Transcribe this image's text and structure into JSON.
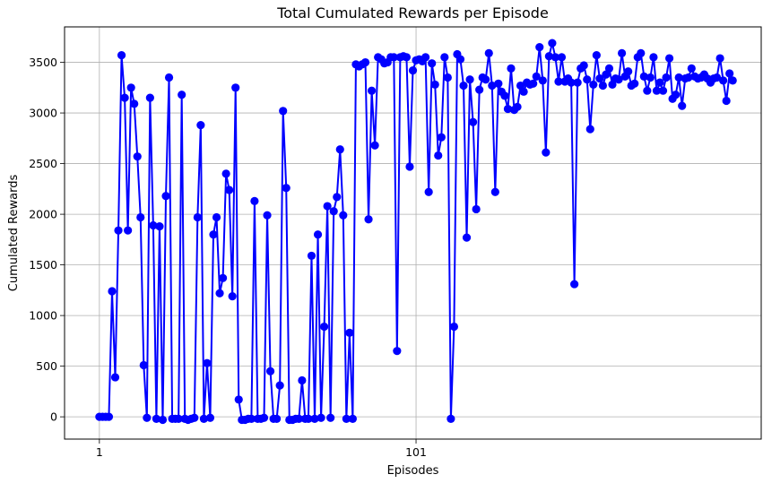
{
  "chart_data": {
    "type": "line",
    "title": "Total Cumulated Rewards per Episode",
    "xlabel": "Episodes",
    "ylabel": "Cumulated Rewards",
    "xlim": [
      -10,
      210
    ],
    "ylim": [
      -220,
      3850
    ],
    "xticks": [
      1,
      101
    ],
    "yticks": [
      0,
      500,
      1000,
      1500,
      2000,
      2500,
      3000,
      3500
    ],
    "grid": true,
    "line_color": "#0000ff",
    "marker": "circle",
    "x": [
      1,
      2,
      3,
      4,
      5,
      6,
      7,
      8,
      9,
      10,
      11,
      12,
      13,
      14,
      15,
      16,
      17,
      18,
      19,
      20,
      21,
      22,
      23,
      24,
      25,
      26,
      27,
      28,
      29,
      30,
      31,
      32,
      33,
      34,
      35,
      36,
      37,
      38,
      39,
      40,
      41,
      42,
      43,
      44,
      45,
      46,
      47,
      48,
      49,
      50,
      51,
      52,
      53,
      54,
      55,
      56,
      57,
      58,
      59,
      60,
      61,
      62,
      63,
      64,
      65,
      66,
      67,
      68,
      69,
      70,
      71,
      72,
      73,
      74,
      75,
      76,
      77,
      78,
      79,
      80,
      81,
      82,
      83,
      84,
      85,
      86,
      87,
      88,
      89,
      90,
      91,
      92,
      93,
      94,
      95,
      96,
      97,
      98,
      99,
      100,
      101,
      102,
      103,
      104,
      105,
      106,
      107,
      108,
      109,
      110,
      111,
      112,
      113,
      114,
      115,
      116,
      117,
      118,
      119,
      120,
      121,
      122,
      123,
      124,
      125,
      126,
      127,
      128,
      129,
      130,
      131,
      132,
      133,
      134,
      135,
      136,
      137,
      138,
      139,
      140,
      141,
      142,
      143,
      144,
      145,
      146,
      147,
      148,
      149,
      150,
      151,
      152,
      153,
      154,
      155,
      156,
      157,
      158,
      159,
      160,
      161,
      162,
      163,
      164,
      165,
      166,
      167,
      168,
      169,
      170,
      171,
      172,
      173,
      174,
      175,
      176,
      177,
      178,
      179,
      180,
      181,
      182,
      183,
      184,
      185,
      186,
      187,
      188,
      189,
      190,
      191,
      192,
      193,
      194,
      195,
      196,
      197,
      198,
      199,
      200,
      201
    ],
    "series": [
      {
        "values": [
          0,
          0,
          0,
          0,
          1240,
          390,
          1840,
          3570,
          3150,
          1840,
          3250,
          3090,
          2570,
          1970,
          510,
          -10,
          3150,
          1890,
          -20,
          1880,
          -30,
          2180,
          3350,
          -20,
          -20,
          -20,
          3180,
          -20,
          -30,
          -20,
          -10,
          1970,
          2880,
          -20,
          530,
          -10,
          1800,
          1970,
          1220,
          1370,
          2400,
          2240,
          1190,
          3250,
          170,
          -30,
          -30,
          -20,
          -20,
          2130,
          -20,
          -20,
          -10,
          1990,
          450,
          -20,
          -20,
          310,
          3020,
          2260,
          -30,
          -30,
          -20,
          -20,
          360,
          -20,
          -20,
          1590,
          -20,
          1800,
          -10,
          890,
          2080,
          -10,
          2030,
          2170,
          2640,
          1990,
          -20,
          830,
          -20,
          3480,
          3460,
          3480,
          3500,
          1950,
          3220,
          2680,
          3550,
          3530,
          3490,
          3500,
          3550,
          3550,
          650,
          3550,
          3560,
          3550,
          2470,
          3420,
          3520,
          3530,
          3510,
          3550,
          2220,
          3490,
          3280,
          2580,
          2760,
          3550,
          3350,
          -20,
          890,
          3580,
          3530,
          3270,
          1770,
          3330,
          2910,
          2050,
          3230,
          3350,
          3330,
          3590,
          3270,
          2220,
          3290,
          3210,
          3170,
          3040,
          3440,
          3030,
          3060,
          3270,
          3210,
          3300,
          3280,
          3290,
          3360,
          3650,
          3320,
          2610,
          3560,
          3690,
          3550,
          3310,
          3550,
          3310,
          3340,
          3300,
          1310,
          3300,
          3440,
          3470,
          3330,
          2840,
          3280,
          3570,
          3340,
          3270,
          3380,
          3440,
          3280,
          3340,
          3330,
          3590,
          3360,
          3410,
          3270,
          3290,
          3550,
          3590,
          3360,
          3220,
          3350,
          3550,
          3220,
          3300,
          3220,
          3350,
          3540,
          3140,
          3180,
          3350,
          3070,
          3340,
          3350,
          3440,
          3360,
          3340,
          3350,
          3380,
          3340,
          3300,
          3340,
          3350,
          3540,
          3320,
          3120,
          3390,
          3320
        ]
      }
    ]
  }
}
